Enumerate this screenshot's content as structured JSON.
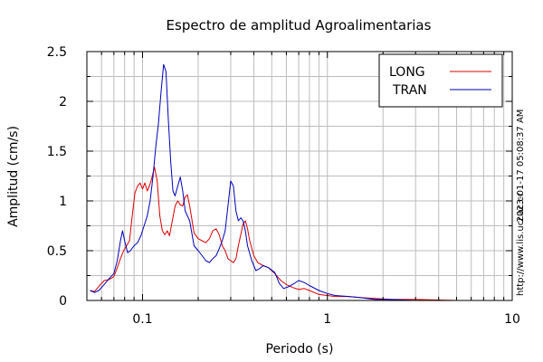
{
  "chart_data": {
    "type": "line",
    "title": "Espectro de amplitud Agroalimentarias",
    "xlabel": "Periodo (s)",
    "ylabel": "Amplitud (cm/s)",
    "xscale": "log",
    "xlim": [
      0.05,
      10
    ],
    "ylim": [
      0,
      2.5
    ],
    "grid": true,
    "legend_position": "top-right",
    "x_ticks": [
      {
        "value": 0.1,
        "label": "0.1"
      },
      {
        "value": 1,
        "label": "1"
      },
      {
        "value": 10,
        "label": "10"
      }
    ],
    "y_ticks": [
      {
        "value": 0,
        "label": "0"
      },
      {
        "value": 0.5,
        "label": "0.5"
      },
      {
        "value": 1,
        "label": "1"
      },
      {
        "value": 1.5,
        "label": "1.5"
      },
      {
        "value": 2,
        "label": "2"
      },
      {
        "value": 2.5,
        "label": "2.5"
      }
    ],
    "timestamp": "2023-01-17 05:08:37 AM",
    "source": "http://www.lis.ucr.ac.cr",
    "series": [
      {
        "name": "LONG",
        "color": "#dd0000",
        "points": [
          [
            0.052,
            0.1
          ],
          [
            0.055,
            0.09
          ],
          [
            0.058,
            0.14
          ],
          [
            0.062,
            0.2
          ],
          [
            0.066,
            0.21
          ],
          [
            0.07,
            0.24
          ],
          [
            0.073,
            0.33
          ],
          [
            0.076,
            0.42
          ],
          [
            0.079,
            0.5
          ],
          [
            0.082,
            0.55
          ],
          [
            0.085,
            0.6
          ],
          [
            0.088,
            0.85
          ],
          [
            0.091,
            1.08
          ],
          [
            0.094,
            1.15
          ],
          [
            0.097,
            1.18
          ],
          [
            0.1,
            1.12
          ],
          [
            0.103,
            1.18
          ],
          [
            0.106,
            1.1
          ],
          [
            0.109,
            1.15
          ],
          [
            0.112,
            1.22
          ],
          [
            0.116,
            1.34
          ],
          [
            0.12,
            1.2
          ],
          [
            0.124,
            0.85
          ],
          [
            0.128,
            0.7
          ],
          [
            0.132,
            0.66
          ],
          [
            0.136,
            0.7
          ],
          [
            0.14,
            0.65
          ],
          [
            0.145,
            0.8
          ],
          [
            0.15,
            0.95
          ],
          [
            0.155,
            1.0
          ],
          [
            0.16,
            0.96
          ],
          [
            0.165,
            0.95
          ],
          [
            0.17,
            1.04
          ],
          [
            0.175,
            1.06
          ],
          [
            0.18,
            0.95
          ],
          [
            0.19,
            0.68
          ],
          [
            0.2,
            0.62
          ],
          [
            0.21,
            0.6
          ],
          [
            0.22,
            0.58
          ],
          [
            0.23,
            0.62
          ],
          [
            0.24,
            0.7
          ],
          [
            0.25,
            0.72
          ],
          [
            0.26,
            0.66
          ],
          [
            0.27,
            0.55
          ],
          [
            0.28,
            0.5
          ],
          [
            0.29,
            0.42
          ],
          [
            0.3,
            0.4
          ],
          [
            0.31,
            0.38
          ],
          [
            0.32,
            0.42
          ],
          [
            0.33,
            0.55
          ],
          [
            0.35,
            0.77
          ],
          [
            0.36,
            0.8
          ],
          [
            0.37,
            0.72
          ],
          [
            0.38,
            0.6
          ],
          [
            0.4,
            0.45
          ],
          [
            0.42,
            0.38
          ],
          [
            0.45,
            0.35
          ],
          [
            0.48,
            0.33
          ],
          [
            0.52,
            0.27
          ],
          [
            0.56,
            0.2
          ],
          [
            0.6,
            0.16
          ],
          [
            0.65,
            0.13
          ],
          [
            0.7,
            0.11
          ],
          [
            0.75,
            0.12
          ],
          [
            0.8,
            0.1
          ],
          [
            0.9,
            0.06
          ],
          [
            1.0,
            0.05
          ],
          [
            1.1,
            0.04
          ],
          [
            1.3,
            0.04
          ],
          [
            1.5,
            0.03
          ],
          [
            1.8,
            0.02
          ],
          [
            2.2,
            0.01
          ],
          [
            3,
            0.01
          ],
          [
            5,
            0.0
          ],
          [
            10,
            0.0
          ]
        ]
      },
      {
        "name": "TRAN",
        "color": "#0000bb",
        "points": [
          [
            0.052,
            0.1
          ],
          [
            0.055,
            0.08
          ],
          [
            0.058,
            0.1
          ],
          [
            0.062,
            0.16
          ],
          [
            0.066,
            0.22
          ],
          [
            0.07,
            0.27
          ],
          [
            0.073,
            0.4
          ],
          [
            0.076,
            0.6
          ],
          [
            0.078,
            0.7
          ],
          [
            0.08,
            0.6
          ],
          [
            0.083,
            0.48
          ],
          [
            0.086,
            0.5
          ],
          [
            0.09,
            0.55
          ],
          [
            0.094,
            0.58
          ],
          [
            0.098,
            0.65
          ],
          [
            0.102,
            0.75
          ],
          [
            0.106,
            0.85
          ],
          [
            0.11,
            1.0
          ],
          [
            0.114,
            1.25
          ],
          [
            0.118,
            1.55
          ],
          [
            0.122,
            1.78
          ],
          [
            0.126,
            2.1
          ],
          [
            0.13,
            2.37
          ],
          [
            0.134,
            2.3
          ],
          [
            0.138,
            1.8
          ],
          [
            0.142,
            1.4
          ],
          [
            0.146,
            1.1
          ],
          [
            0.15,
            1.05
          ],
          [
            0.155,
            1.15
          ],
          [
            0.16,
            1.24
          ],
          [
            0.165,
            1.1
          ],
          [
            0.17,
            0.9
          ],
          [
            0.18,
            0.8
          ],
          [
            0.19,
            0.55
          ],
          [
            0.2,
            0.5
          ],
          [
            0.21,
            0.45
          ],
          [
            0.22,
            0.4
          ],
          [
            0.23,
            0.38
          ],
          [
            0.24,
            0.42
          ],
          [
            0.25,
            0.45
          ],
          [
            0.26,
            0.52
          ],
          [
            0.27,
            0.6
          ],
          [
            0.28,
            0.7
          ],
          [
            0.29,
            0.95
          ],
          [
            0.3,
            1.2
          ],
          [
            0.31,
            1.15
          ],
          [
            0.32,
            0.9
          ],
          [
            0.33,
            0.8
          ],
          [
            0.34,
            0.83
          ],
          [
            0.35,
            0.8
          ],
          [
            0.36,
            0.7
          ],
          [
            0.37,
            0.55
          ],
          [
            0.39,
            0.4
          ],
          [
            0.41,
            0.3
          ],
          [
            0.43,
            0.32
          ],
          [
            0.45,
            0.35
          ],
          [
            0.48,
            0.33
          ],
          [
            0.52,
            0.28
          ],
          [
            0.55,
            0.17
          ],
          [
            0.58,
            0.12
          ],
          [
            0.62,
            0.14
          ],
          [
            0.66,
            0.17
          ],
          [
            0.7,
            0.2
          ],
          [
            0.75,
            0.18
          ],
          [
            0.8,
            0.15
          ],
          [
            0.9,
            0.1
          ],
          [
            1.0,
            0.07
          ],
          [
            1.1,
            0.05
          ],
          [
            1.3,
            0.04
          ],
          [
            1.5,
            0.03
          ],
          [
            1.8,
            0.01
          ],
          [
            2.2,
            0.01
          ],
          [
            3,
            0.0
          ],
          [
            5,
            0.0
          ],
          [
            10,
            0.0
          ]
        ]
      }
    ]
  }
}
